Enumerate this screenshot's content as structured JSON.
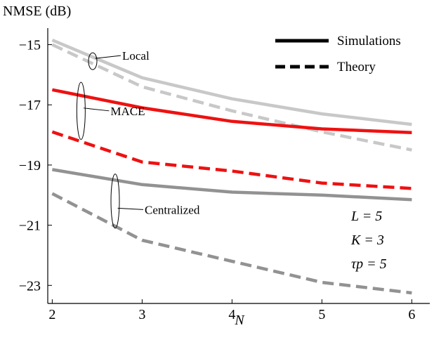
{
  "chart_data": {
    "type": "line",
    "ylabel": "NMSE (dB)",
    "xlabel": "N",
    "x": [
      2,
      3,
      4,
      5,
      6
    ],
    "xlim": [
      1.95,
      6.2
    ],
    "ylim": [
      -23.6,
      -14.45
    ],
    "xticks": [
      "2",
      "3",
      "4",
      "5",
      "6"
    ],
    "yticks": [
      {
        "value": -15,
        "label": "−15"
      },
      {
        "value": -17,
        "label": "−17"
      },
      {
        "value": -19,
        "label": "−19"
      },
      {
        "value": -21,
        "label": "−21"
      },
      {
        "value": -23,
        "label": "−23"
      }
    ],
    "series": [
      {
        "group": "Local",
        "kind": "Simulations",
        "color": "#c8c8c8",
        "dash": "solid",
        "values": [
          -14.85,
          -16.1,
          -16.8,
          -17.3,
          -17.65
        ]
      },
      {
        "group": "Local",
        "kind": "Theory",
        "color": "#c8c8c8",
        "dash": "dashed",
        "values": [
          -15.0,
          -16.4,
          -17.2,
          -17.9,
          -18.5
        ]
      },
      {
        "group": "MACE",
        "kind": "Simulations",
        "color": "#ee1111",
        "dash": "solid",
        "values": [
          -16.5,
          -17.1,
          -17.55,
          -17.8,
          -17.92
        ]
      },
      {
        "group": "MACE",
        "kind": "Theory",
        "color": "#ee1111",
        "dash": "dashed",
        "values": [
          -17.9,
          -18.9,
          -19.2,
          -19.6,
          -19.78
        ]
      },
      {
        "group": "Centralized",
        "kind": "Simulations",
        "color": "#929292",
        "dash": "solid",
        "values": [
          -19.15,
          -19.65,
          -19.9,
          -20.0,
          -20.15
        ]
      },
      {
        "group": "Centralized",
        "kind": "Theory",
        "color": "#929292",
        "dash": "dashed",
        "values": [
          -19.95,
          -21.5,
          -22.2,
          -22.9,
          -23.25
        ]
      }
    ],
    "legend": {
      "placement": "top-right",
      "entries": [
        {
          "label": "Simulations",
          "dash": "solid"
        },
        {
          "label": "Theory",
          "dash": "dashed"
        }
      ]
    },
    "annotations": [
      {
        "text": "Local",
        "x": 2.45,
        "y": -15.55,
        "ellipse_ry": 0.28
      },
      {
        "text": "MACE",
        "x": 2.32,
        "y": -17.2,
        "ellipse_ry": 0.95
      },
      {
        "text": "Centralized",
        "x": 2.7,
        "y": -20.2,
        "ellipse_ry": 0.9
      }
    ],
    "parameters": [
      "L = 5",
      "K = 3",
      "τp = 5"
    ],
    "grid": false
  }
}
